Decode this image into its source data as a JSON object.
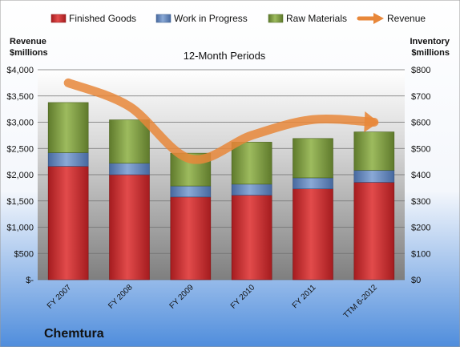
{
  "chart_data": {
    "type": "bar",
    "stacked": true,
    "subtitle": "12-Month Periods",
    "company": "Chemtura",
    "categories": [
      "FY 2007",
      "FY 2008",
      "FY 2009",
      "FY 2010",
      "FY 2011",
      "TTM 6-2012"
    ],
    "left_axis": {
      "title_line1": "Revenue",
      "title_line2": "$millions",
      "ylim": [
        0,
        4000
      ],
      "ticks": [
        0,
        500,
        1000,
        1500,
        2000,
        2500,
        3000,
        3500,
        4000
      ],
      "tick_labels": [
        "$-",
        "$500",
        "$1,000",
        "$1,500",
        "$2,000",
        "$2,500",
        "$3,000",
        "$3,500",
        "$4,000"
      ]
    },
    "right_axis": {
      "title_line1": "Inventory",
      "title_line2": "$millions",
      "ylim": [
        0,
        800
      ],
      "ticks": [
        0,
        100,
        200,
        300,
        400,
        500,
        600,
        700,
        800
      ],
      "tick_labels": [
        "$0",
        "$100",
        "$200",
        "$300",
        "$400",
        "$500",
        "$600",
        "$700",
        "$800"
      ]
    },
    "series": [
      {
        "name": "Finished Goods",
        "axis": "right",
        "color": "#c0282a",
        "values": [
          432,
          400,
          315,
          322,
          346,
          371
        ]
      },
      {
        "name": "Work in Progress",
        "axis": "right",
        "color": "#5b7fb5",
        "values": [
          52,
          44,
          42,
          42,
          42,
          46
        ]
      },
      {
        "name": "Raw Materials",
        "axis": "right",
        "color": "#77933c",
        "values": [
          191,
          165,
          125,
          160,
          150,
          146
        ]
      },
      {
        "name": "Revenue",
        "axis": "left",
        "type": "line",
        "color": "#e8873a",
        "values": [
          3750,
          3300,
          2300,
          2750,
          3050,
          3000
        ]
      }
    ],
    "grid": true,
    "legend_position": "top"
  }
}
